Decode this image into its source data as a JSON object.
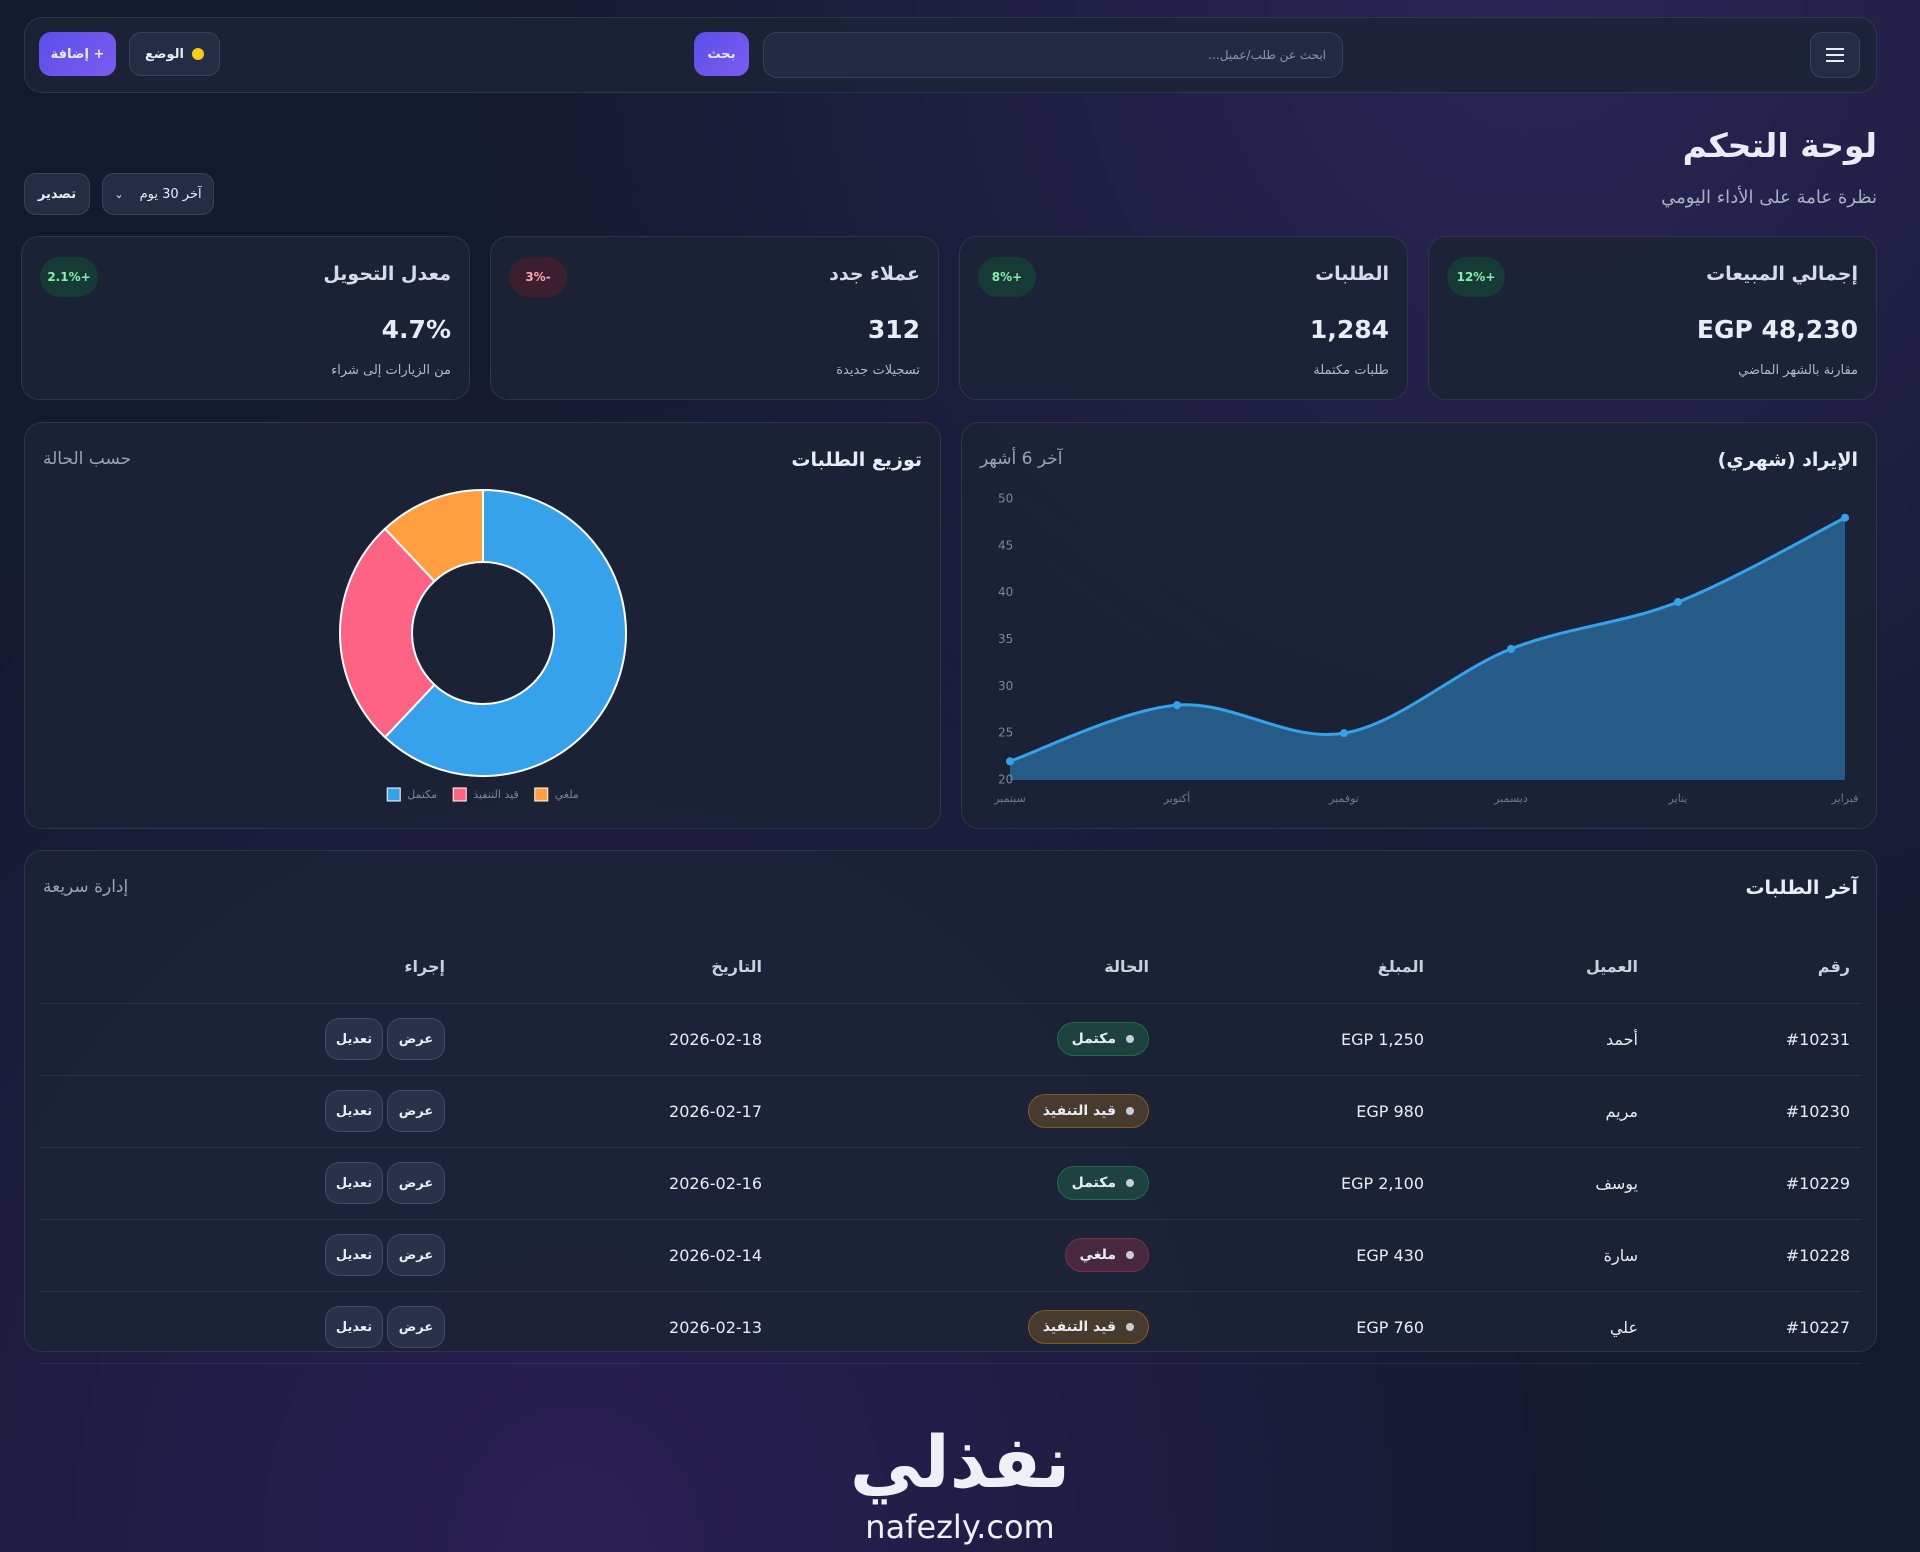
{
  "header": {
    "search_placeholder": "ابحث عن طلب/عميل...",
    "search_button": "بحث",
    "mode_button": "الوضع",
    "add_button": "+ إضافة"
  },
  "page": {
    "title": "لوحة التحكم",
    "subtitle": "نظرة عامة على الأداء اليومي",
    "range_select": "آخر 30 يوم",
    "export_button": "تصدير"
  },
  "kpis": [
    {
      "title": "إجمالي المبيعات",
      "value": "EGP 48,230",
      "note": "مقارنة بالشهر الماضي",
      "change": "+12%"
    },
    {
      "title": "الطلبات",
      "value": "1,284",
      "note": "طلبات مكتملة",
      "change": "+8%"
    },
    {
      "title": "عملاء جدد",
      "value": "312",
      "note": "تسجيلات جديدة",
      "change": "-3%"
    },
    {
      "title": "معدل التحويل",
      "value": "4.7%",
      "note": "من الزيارات إلى شراء",
      "change": "+2.1%"
    }
  ],
  "chart_data": [
    {
      "type": "area",
      "title": "الإيراد (شهري)",
      "subtitle": "آخر 6 أشهر",
      "categories": [
        "سبتمبر",
        "أكتوبر",
        "نوفمبر",
        "ديسمبر",
        "يناير",
        "فبراير"
      ],
      "values": [
        22,
        28,
        25,
        34,
        39,
        48
      ],
      "color": "#36a2eb",
      "ylim": [
        20,
        50
      ],
      "yticks": [
        20,
        25,
        30,
        35,
        40,
        45,
        50
      ],
      "grid": false
    },
    {
      "type": "donut",
      "title": "توزيع الطلبات",
      "subtitle": "حسب الحالة",
      "categories": [
        "مكتمل",
        "قيد التنفيذ",
        "ملغي"
      ],
      "values": [
        62,
        26,
        12
      ],
      "colors": [
        "#36a2eb",
        "#ff6384",
        "#ff9f40"
      ]
    }
  ],
  "table": {
    "title": "آخر الطلبات",
    "subtitle": "إدارة سريعة",
    "columns": [
      "رقم",
      "العميل",
      "المبلغ",
      "الحالة",
      "التاريخ",
      "إجراء"
    ],
    "actions": [
      "عرض",
      "تعديل"
    ],
    "status_colors": {
      "مكتمل": "#22c55e",
      "قيد التنفيذ": "#f59e0b",
      "ملغي": "#f43f5e"
    },
    "rows": [
      [
        "#10231",
        "أحمد",
        "EGP 1,250",
        "مكتمل",
        "2026-02-18"
      ],
      [
        "#10230",
        "مريم",
        "EGP 980",
        "قيد التنفيذ",
        "2026-02-17"
      ],
      [
        "#10229",
        "يوسف",
        "EGP 2,100",
        "مكتمل",
        "2026-02-16"
      ],
      [
        "#10228",
        "سارة",
        "EGP 430",
        "ملغي",
        "2026-02-14"
      ],
      [
        "#10227",
        "علي",
        "EGP 760",
        "قيد التنفيذ",
        "2026-02-13"
      ]
    ]
  },
  "watermark": {
    "logo": "نفذلي",
    "url": "nafezly.com"
  }
}
